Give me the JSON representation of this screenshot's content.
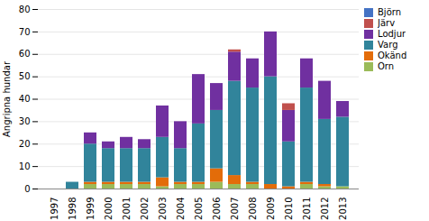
{
  "chart_data": {
    "type": "bar",
    "stacked": true,
    "ylabel": "Angripna hundar",
    "categories": [
      "1997",
      "1998",
      "1999",
      "2000",
      "2001",
      "2002",
      "2003",
      "2004",
      "2005",
      "2006",
      "2007",
      "2008",
      "2009",
      "2010",
      "2011",
      "2012",
      "2013"
    ],
    "series": [
      {
        "name": "Björn",
        "color": "#4472c4",
        "values": [
          0,
          0,
          0,
          0,
          0,
          0,
          0,
          0,
          0,
          0,
          0,
          0,
          0,
          0,
          0,
          0,
          0
        ]
      },
      {
        "name": "Järv",
        "color": "#c0504d",
        "values": [
          0,
          0,
          0,
          0,
          0,
          0,
          0,
          0,
          0,
          0,
          1,
          0,
          0,
          3,
          0,
          0,
          0
        ]
      },
      {
        "name": "Lodjur",
        "color": "#7030a0",
        "values": [
          0,
          0,
          5,
          3,
          5,
          4,
          14,
          12,
          22,
          12,
          13,
          13,
          20,
          14,
          13,
          17,
          7
        ]
      },
      {
        "name": "Varg",
        "color": "#31849b",
        "values": [
          0,
          3,
          17,
          15,
          15,
          15,
          18,
          15,
          26,
          26,
          42,
          42,
          48,
          20,
          42,
          29,
          31
        ]
      },
      {
        "name": "Okänd",
        "color": "#e36c09",
        "values": [
          0,
          0,
          1,
          1,
          1,
          1,
          4,
          1,
          1,
          6,
          4,
          1,
          2,
          1,
          1,
          1,
          0
        ]
      },
      {
        "name": "Örn",
        "color": "#9bbb59",
        "values": [
          0,
          0,
          2,
          2,
          2,
          2,
          1,
          2,
          2,
          3,
          2,
          2,
          0,
          0,
          2,
          1,
          1
        ]
      }
    ],
    "ylim": [
      0,
      80
    ],
    "yticks": [
      0,
      10,
      20,
      30,
      40,
      50,
      60,
      70,
      80
    ],
    "grid": true,
    "legend": "right"
  }
}
